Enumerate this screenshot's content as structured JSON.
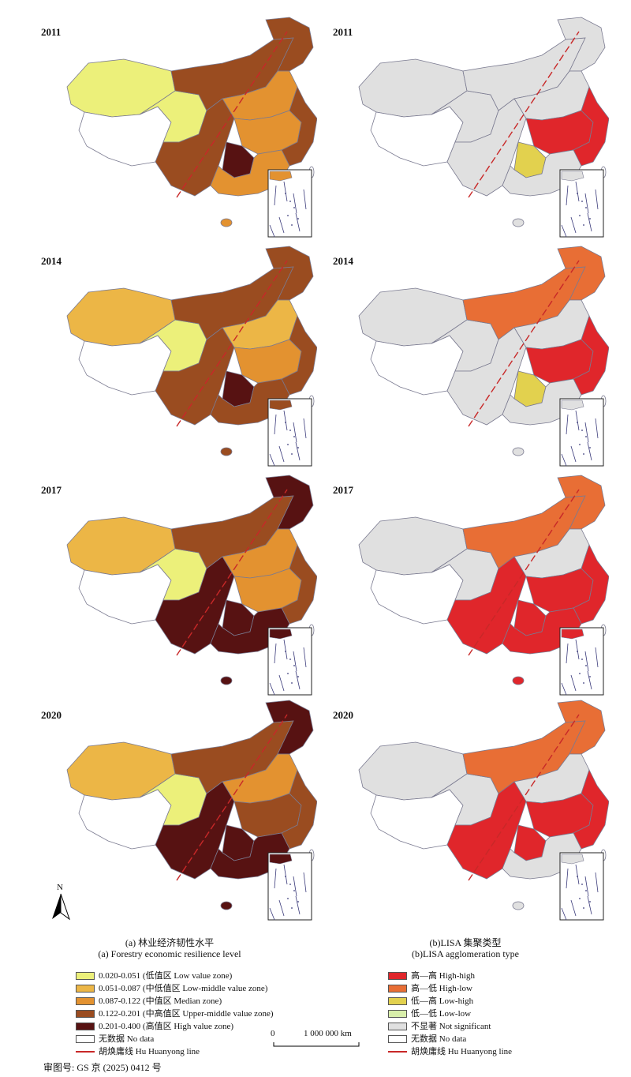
{
  "colors": {
    "low": "#ecf07a",
    "lowmid": "#ecb646",
    "median": "#e39230",
    "uppermid": "#9a4c20",
    "high": "#571212",
    "hh": "#e0262b",
    "hl": "#e86e35",
    "lh": "#e2d14e",
    "ll": "#d8eeaa",
    "ns": "#e0e0e0",
    "nodata": "#ffffff",
    "huline": "#c82828",
    "border": "#7a7a90"
  },
  "panels_a": [
    {
      "year": "2011",
      "fills": {
        "nw": "low",
        "tibet": "nodata",
        "qinghai": "low",
        "inner": "uppermid",
        "ne": "uppermid",
        "north": "median",
        "center": "median",
        "sw": "uppermid",
        "guizhou": "high",
        "south": "median",
        "east": "uppermid"
      }
    },
    {
      "year": "2014",
      "fills": {
        "nw": "lowmid",
        "tibet": "nodata",
        "qinghai": "low",
        "inner": "uppermid",
        "ne": "uppermid",
        "north": "lowmid",
        "center": "median",
        "sw": "uppermid",
        "guizhou": "high",
        "south": "uppermid",
        "east": "uppermid"
      }
    },
    {
      "year": "2017",
      "fills": {
        "nw": "lowmid",
        "tibet": "nodata",
        "qinghai": "low",
        "inner": "uppermid",
        "ne": "high",
        "north": "median",
        "center": "median",
        "sw": "high",
        "guizhou": "high",
        "south": "high",
        "east": "uppermid"
      }
    },
    {
      "year": "2020",
      "fills": {
        "nw": "lowmid",
        "tibet": "nodata",
        "qinghai": "low",
        "inner": "uppermid",
        "ne": "high",
        "north": "median",
        "center": "uppermid",
        "sw": "high",
        "guizhou": "high",
        "south": "high",
        "east": "uppermid"
      }
    }
  ],
  "panels_b": [
    {
      "year": "2011",
      "fills": {
        "nw": "ns",
        "tibet": "nodata",
        "qinghai": "ns",
        "inner": "ns",
        "ne": "ns",
        "north": "ns",
        "center": "hh",
        "sw": "ns",
        "guizhou": "lh",
        "south": "ns",
        "east": "hh"
      }
    },
    {
      "year": "2014",
      "fills": {
        "nw": "ns",
        "tibet": "nodata",
        "qinghai": "ns",
        "inner": "hl",
        "ne": "hl",
        "north": "ns",
        "center": "hh",
        "sw": "ns",
        "guizhou": "lh",
        "south": "ns",
        "east": "hh"
      }
    },
    {
      "year": "2017",
      "fills": {
        "nw": "ns",
        "tibet": "nodata",
        "qinghai": "ns",
        "inner": "hl",
        "ne": "hl",
        "north": "ns",
        "center": "hh",
        "sw": "hh",
        "guizhou": "hh",
        "south": "hh",
        "east": "hh"
      }
    },
    {
      "year": "2020",
      "fills": {
        "nw": "ns",
        "tibet": "nodata",
        "qinghai": "ns",
        "inner": "hl",
        "ne": "hl",
        "north": "ns",
        "center": "hh",
        "sw": "hh",
        "guizhou": "hh",
        "south": "ns",
        "east": "hh"
      }
    }
  ],
  "captions": {
    "a_cn": "(a) 林业经济韧性水平",
    "a_en": "(a) Forestry economic resilience level",
    "b_cn": "(b)LISA 集聚类型",
    "b_en": "(b)LISA agglomeration type"
  },
  "legend_a": [
    {
      "key": "low",
      "label": "0.020-0.051 (低值区 Low value zone)"
    },
    {
      "key": "lowmid",
      "label": "0.051-0.087 (中低值区 Low-middle value zone)"
    },
    {
      "key": "median",
      "label": "0.087-0.122 (中值区 Median zone)"
    },
    {
      "key": "uppermid",
      "label": "0.122-0.201 (中高值区 Upper-middle value zone)"
    },
    {
      "key": "high",
      "label": "0.201-0.400 (高值区 High value zone)"
    },
    {
      "key": "nodata",
      "label": "无数据 No data"
    }
  ],
  "legend_a_line": "胡焕庸线 Hu Huanyong line",
  "legend_b": [
    {
      "key": "hh",
      "label": "高—高 High-high"
    },
    {
      "key": "hl",
      "label": "高—低 High-low"
    },
    {
      "key": "lh",
      "label": "低—高 Low-high"
    },
    {
      "key": "ll",
      "label": "低—低 Low-low"
    },
    {
      "key": "ns",
      "label": "不显著 Not significant"
    },
    {
      "key": "nodata",
      "label": "无数据 No data"
    }
  ],
  "legend_b_line": "胡焕庸线 Hu Huanyong line",
  "scale": {
    "zero": "0",
    "distance": "1 000 000 km"
  },
  "north_label": "N",
  "review_number": "审图号: GS 京 (2025) 0412 号"
}
